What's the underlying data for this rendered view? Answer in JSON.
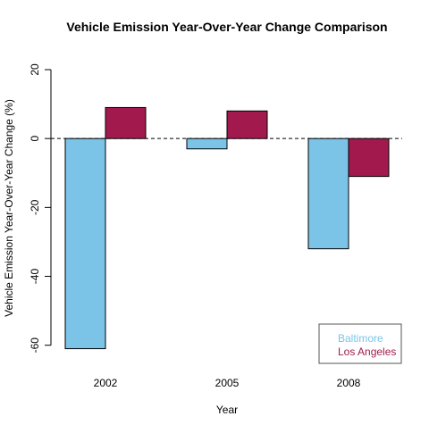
{
  "chart_data": {
    "type": "bar",
    "title": "Vehicle Emission Year-Over-Year Change Comparison",
    "xlabel": "Year",
    "ylabel": "Vehicle Emission Year-Over-Year Change (%)",
    "categories": [
      "2002",
      "2005",
      "2008"
    ],
    "series": [
      {
        "name": "Baltimore",
        "values": [
          -61,
          -3,
          -32
        ],
        "color": "#7BC4E8"
      },
      {
        "name": "Los Angeles",
        "values": [
          9,
          8,
          -11
        ],
        "color": "#A21A4D"
      }
    ],
    "ylim": [
      -65,
      20
    ],
    "yticks": [
      -60,
      -40,
      -20,
      0,
      20
    ],
    "reference_line": {
      "y": 0,
      "style": "dashed"
    },
    "grid": false,
    "legend_position": "bottom-right"
  }
}
